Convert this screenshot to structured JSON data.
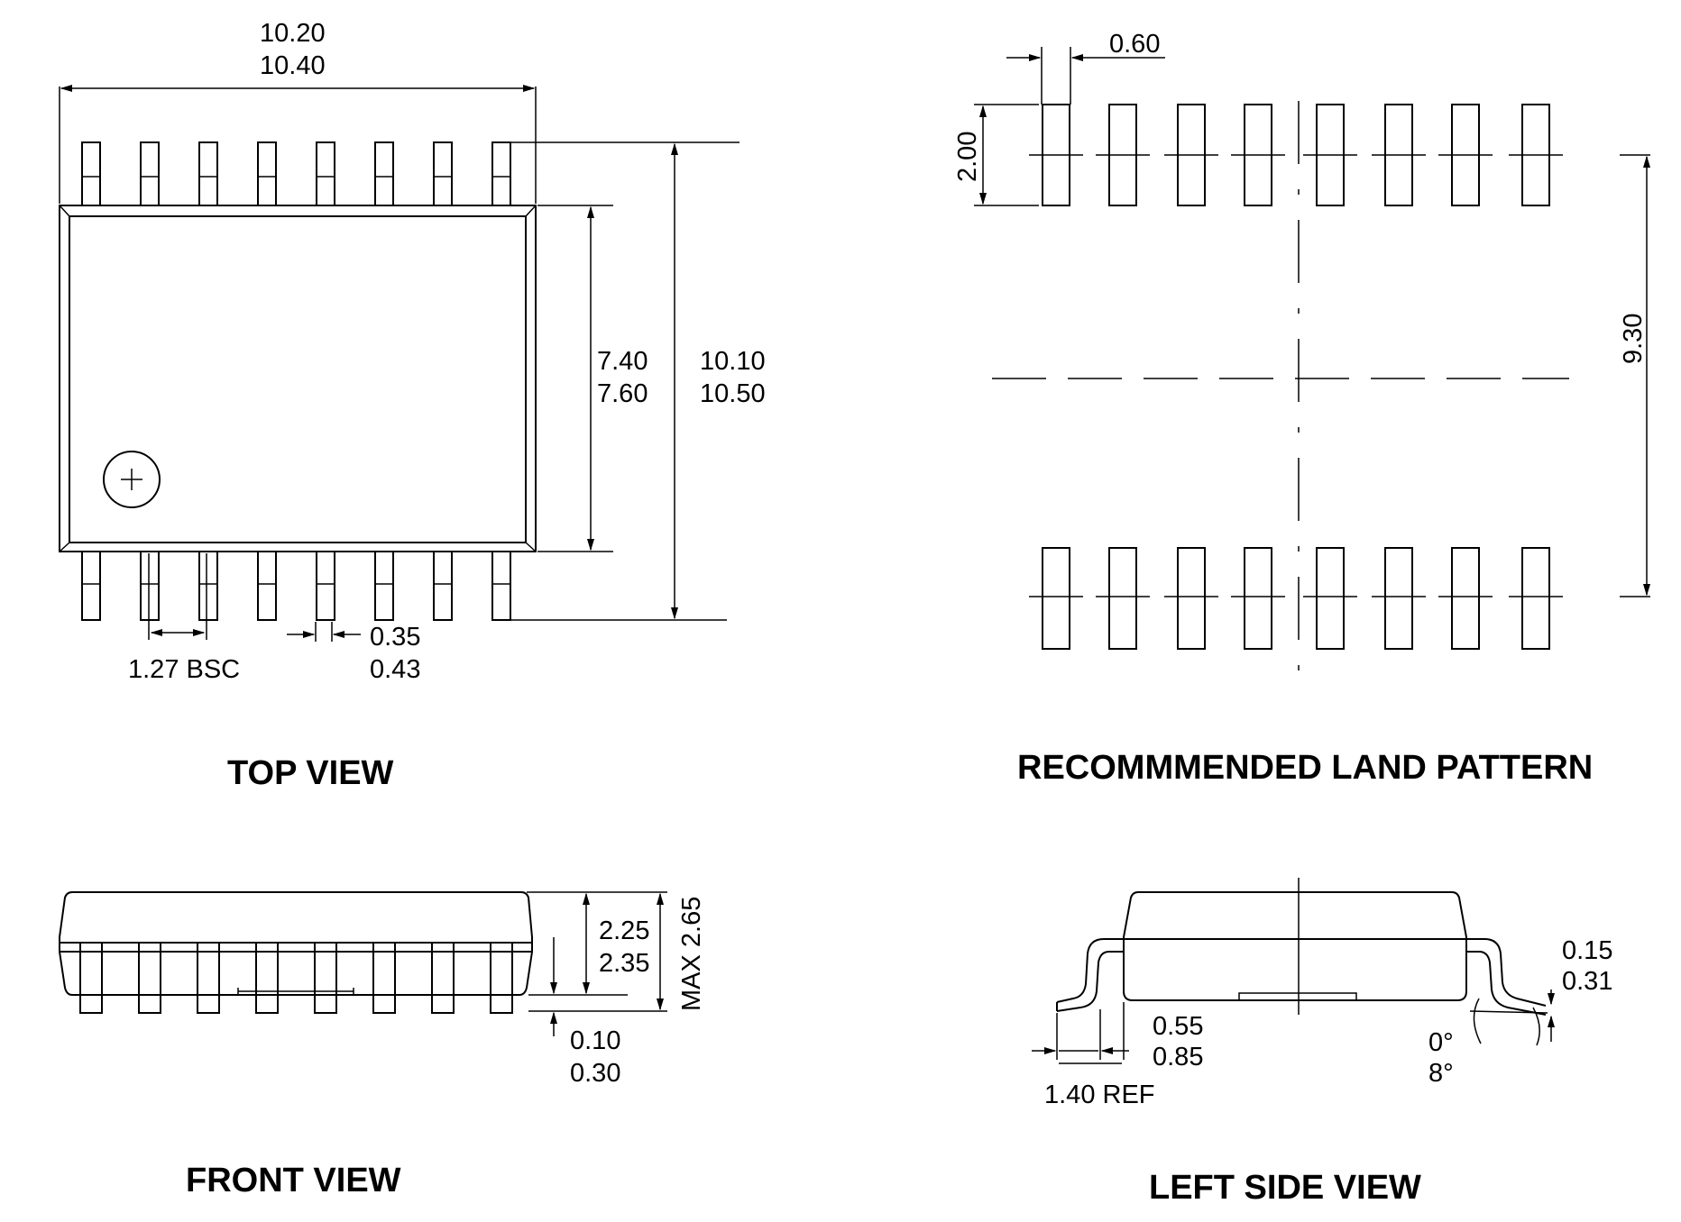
{
  "views": {
    "top": {
      "title": "TOP VIEW",
      "body_width_min": "10.20",
      "body_width_max": "10.40",
      "body_height_min": "7.40",
      "body_height_max": "7.60",
      "overall_height_min": "10.10",
      "overall_height_max": "10.50",
      "pitch": "1.27 BSC",
      "lead_width_min": "0.35",
      "lead_width_max": "0.43",
      "pin_count_per_side": 8
    },
    "land_pattern": {
      "title": "RECOMMMENDED LAND PATTERN",
      "pad_width": "0.60",
      "pad_length": "2.00",
      "row_spacing": "9.30"
    },
    "front": {
      "title": "FRONT VIEW",
      "height_min": "2.25",
      "height_max": "2.35",
      "max_height": "MAX 2.65",
      "standoff_min": "0.10",
      "standoff_max": "0.30"
    },
    "left_side": {
      "title": "LEFT SIDE VIEW",
      "lead_thickness_min": "0.15",
      "lead_thickness_max": "0.31",
      "foot_length_min": "0.55",
      "foot_length_max": "0.85",
      "angle_min": "0°",
      "angle_max": "8°",
      "lead_length": "1.40 REF"
    }
  }
}
